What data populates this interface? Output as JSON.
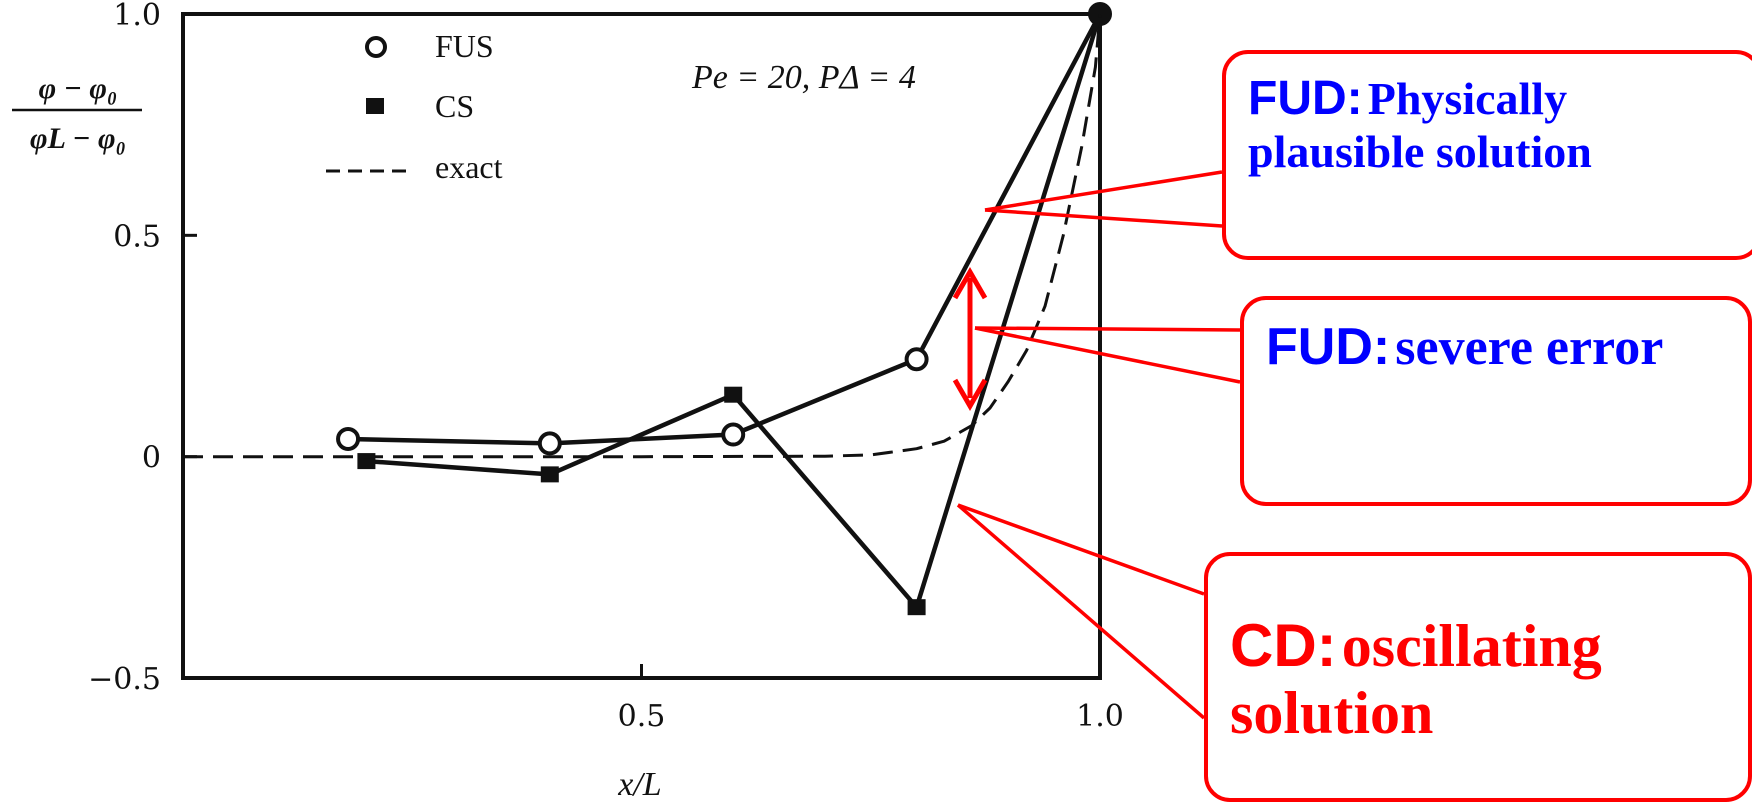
{
  "chart_data": {
    "type": "line",
    "ylabel": {
      "num": "φ − φ₀",
      "den": "φL − φ₀"
    },
    "xlabel": "x/L",
    "param_label": "Pe = 20, PΔ = 4",
    "xlim": [
      0,
      1.0
    ],
    "ylim": [
      -0.5,
      1.0
    ],
    "x_ticks": [
      {
        "value": 0.5,
        "label": "0.5"
      },
      {
        "value": 1.0,
        "label": "1.0"
      }
    ],
    "y_ticks": [
      {
        "value": 1.0,
        "label": "1.0"
      },
      {
        "value": 0.5,
        "label": "0.5"
      },
      {
        "value": 0,
        "label": "0"
      },
      {
        "value": -0.5,
        "label": "−0.5"
      }
    ],
    "legend": [
      {
        "key": "fus",
        "marker": "open-circle",
        "label": "FUS"
      },
      {
        "key": "cs",
        "marker": "filled-square",
        "label": "CS"
      },
      {
        "key": "exact",
        "marker": "dashed-line",
        "label": "exact"
      }
    ],
    "series": [
      {
        "key": "fus",
        "name": "FUS",
        "marker": "open-circle",
        "x": [
          0.18,
          0.4,
          0.6,
          0.8,
          1.0
        ],
        "y": [
          0.04,
          0.03,
          0.05,
          0.22,
          1.0
        ]
      },
      {
        "key": "cs",
        "name": "CS",
        "marker": "filled-square",
        "x": [
          0.2,
          0.4,
          0.6,
          0.8,
          1.0
        ],
        "y": [
          -0.01,
          -0.04,
          0.14,
          -0.34,
          1.0
        ]
      },
      {
        "key": "exact",
        "name": "exact",
        "style": "dashed",
        "x": [
          0.0,
          0.5,
          0.7,
          0.75,
          0.8,
          0.83,
          0.86,
          0.88,
          0.9,
          0.92,
          0.94,
          0.96,
          0.98,
          0.995,
          1.0
        ],
        "y": [
          0.0,
          0.0,
          0.001,
          0.004,
          0.018,
          0.035,
          0.07,
          0.11,
          0.17,
          0.24,
          0.34,
          0.5,
          0.7,
          0.88,
          1.0
        ]
      }
    ]
  },
  "callouts": {
    "fud_plausible": {
      "head": "FUD:",
      "text": "Physically plausible solution",
      "color": "#0000ff"
    },
    "fud_error": {
      "head": "FUD:",
      "text": "severe error",
      "color": "#0000ff"
    },
    "cd_oscillating": {
      "head": "CD:",
      "text": "oscillating solution",
      "color": "#ff0000"
    }
  },
  "colors": {
    "annotation": "#ff0000",
    "plot": "#111111"
  }
}
